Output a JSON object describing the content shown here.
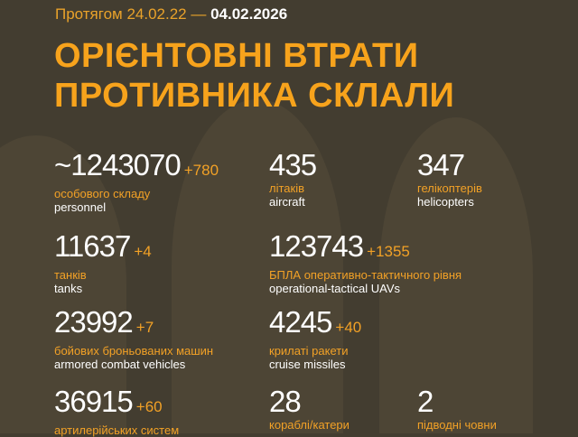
{
  "header": {
    "period_prefix": "Протягом 24.02.22 —",
    "date": "04.02.2026",
    "title_line1": "ОРІЄНТОВНІ ВТРАТИ",
    "title_line2": "ПРОТИВНИКА СКЛАЛИ"
  },
  "colors": {
    "accent": "#f7a31c",
    "background": "#433d30"
  },
  "stats": [
    {
      "value": "~1243070",
      "increase": "+780",
      "ua": "особового складу",
      "en": "personnel"
    },
    {
      "value": "435",
      "increase": "",
      "ua": "літаків",
      "en": "aircraft"
    },
    {
      "value": "347",
      "increase": "",
      "ua": "гелікоптерів",
      "en": "helicopters"
    },
    {
      "value": "11637",
      "increase": "+4",
      "ua": "танків",
      "en": "tanks"
    },
    {
      "value": "123743",
      "increase": "+1355",
      "ua": "БПЛА оперативно-тактичного рівня",
      "en": "operational-tactical UAVs"
    },
    {
      "value": "23992",
      "increase": "+7",
      "ua": "бойових броньованих машин",
      "en": "armored combat vehicles"
    },
    {
      "value": "4245",
      "increase": "+40",
      "ua": "крилаті ракети",
      "en": "cruise missiles"
    },
    {
      "value": "36915",
      "increase": "+60",
      "ua": "артилерійських систем",
      "en": ""
    },
    {
      "value": "28",
      "increase": "",
      "ua": "кораблі/катери",
      "en": ""
    },
    {
      "value": "2",
      "increase": "",
      "ua": "підводні човни",
      "en": ""
    }
  ]
}
